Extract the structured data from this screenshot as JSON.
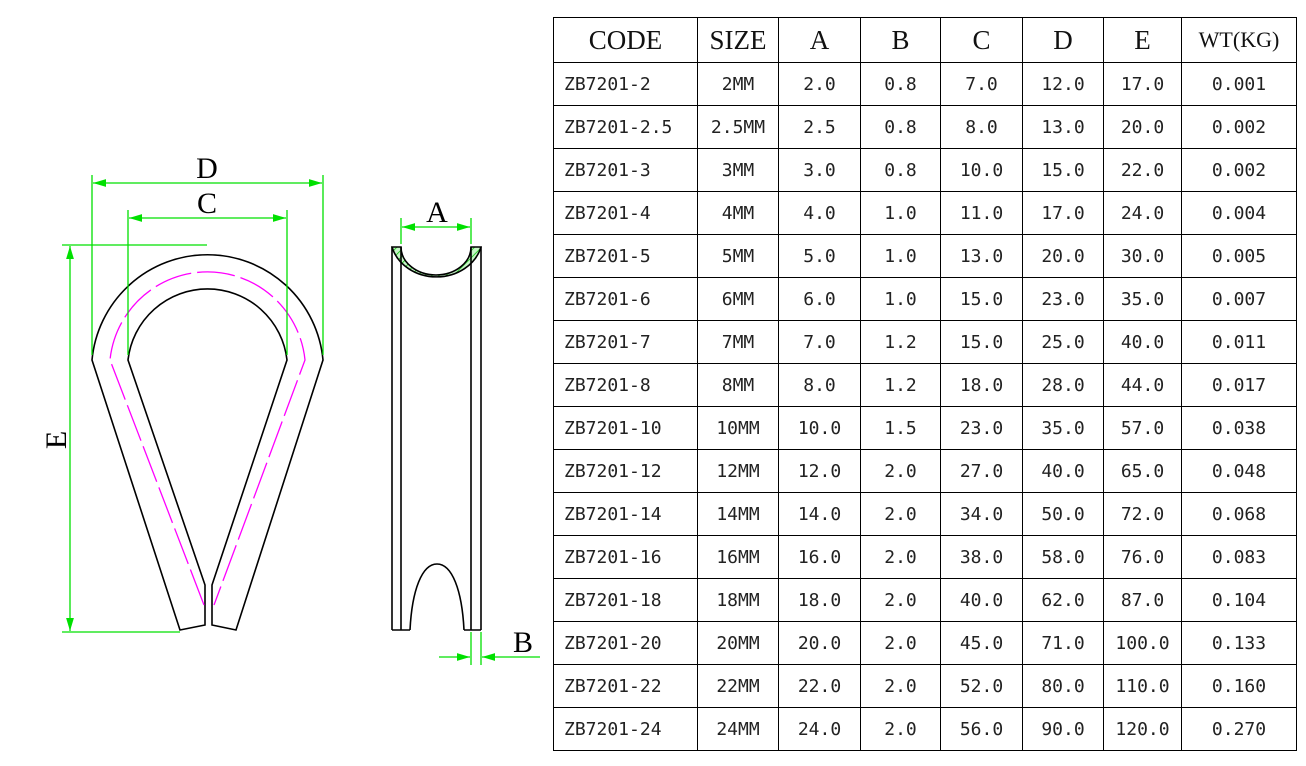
{
  "drawing": {
    "labels": {
      "D": "D",
      "C": "C",
      "E": "E",
      "A": "A",
      "B": "B"
    },
    "colors": {
      "dimension": "#00e000",
      "centerline": "#ff00ff",
      "hatch": "#00c000",
      "outline": "#000000"
    }
  },
  "table": {
    "headers": [
      "CODE",
      "SIZE",
      "A",
      "B",
      "C",
      "D",
      "E",
      "WT(KG)"
    ],
    "rows": [
      [
        "ZB7201-2",
        "2MM",
        "2.0",
        "0.8",
        "7.0",
        "12.0",
        "17.0",
        "0.001"
      ],
      [
        "ZB7201-2.5",
        "2.5MM",
        "2.5",
        "0.8",
        "8.0",
        "13.0",
        "20.0",
        "0.002"
      ],
      [
        "ZB7201-3",
        "3MM",
        "3.0",
        "0.8",
        "10.0",
        "15.0",
        "22.0",
        "0.002"
      ],
      [
        "ZB7201-4",
        "4MM",
        "4.0",
        "1.0",
        "11.0",
        "17.0",
        "24.0",
        "0.004"
      ],
      [
        "ZB7201-5",
        "5MM",
        "5.0",
        "1.0",
        "13.0",
        "20.0",
        "30.0",
        "0.005"
      ],
      [
        "ZB7201-6",
        "6MM",
        "6.0",
        "1.0",
        "15.0",
        "23.0",
        "35.0",
        "0.007"
      ],
      [
        "ZB7201-7",
        "7MM",
        "7.0",
        "1.2",
        "15.0",
        "25.0",
        "40.0",
        "0.011"
      ],
      [
        "ZB7201-8",
        "8MM",
        "8.0",
        "1.2",
        "18.0",
        "28.0",
        "44.0",
        "0.017"
      ],
      [
        "ZB7201-10",
        "10MM",
        "10.0",
        "1.5",
        "23.0",
        "35.0",
        "57.0",
        "0.038"
      ],
      [
        "ZB7201-12",
        "12MM",
        "12.0",
        "2.0",
        "27.0",
        "40.0",
        "65.0",
        "0.048"
      ],
      [
        "ZB7201-14",
        "14MM",
        "14.0",
        "2.0",
        "34.0",
        "50.0",
        "72.0",
        "0.068"
      ],
      [
        "ZB7201-16",
        "16MM",
        "16.0",
        "2.0",
        "38.0",
        "58.0",
        "76.0",
        "0.083"
      ],
      [
        "ZB7201-18",
        "18MM",
        "18.0",
        "2.0",
        "40.0",
        "62.0",
        "87.0",
        "0.104"
      ],
      [
        "ZB7201-20",
        "20MM",
        "20.0",
        "2.0",
        "45.0",
        "71.0",
        "100.0",
        "0.133"
      ],
      [
        "ZB7201-22",
        "22MM",
        "22.0",
        "2.0",
        "52.0",
        "80.0",
        "110.0",
        "0.160"
      ],
      [
        "ZB7201-24",
        "24MM",
        "24.0",
        "2.0",
        "56.0",
        "90.0",
        "120.0",
        "0.270"
      ]
    ]
  }
}
